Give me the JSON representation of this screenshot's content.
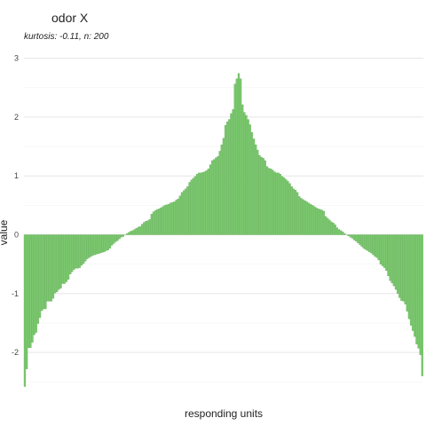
{
  "chart_data": {
    "type": "bar",
    "title": "odor X",
    "subtitle": "kurtosis: -0.11, n: 200",
    "xlabel": "responding units",
    "ylabel": "value",
    "n": 200,
    "ylim": [
      -2.55,
      3.05
    ],
    "yticks": [
      -2,
      -1,
      0,
      1,
      2,
      3
    ],
    "grid": true,
    "legend": "none",
    "bar_color": "#7bc96f",
    "values": [
      -2.58,
      -2.28,
      -1.92,
      -1.92,
      -1.83,
      -1.7,
      -1.66,
      -1.51,
      -1.41,
      -1.29,
      -1.26,
      -1.26,
      -1.13,
      -1.13,
      -1.13,
      -1.08,
      -0.99,
      -0.97,
      -0.93,
      -0.91,
      -0.83,
      -0.83,
      -0.8,
      -0.76,
      -0.67,
      -0.63,
      -0.59,
      -0.57,
      -0.57,
      -0.56,
      -0.52,
      -0.49,
      -0.45,
      -0.41,
      -0.39,
      -0.37,
      -0.35,
      -0.34,
      -0.33,
      -0.32,
      -0.31,
      -0.3,
      -0.29,
      -0.27,
      -0.26,
      -0.23,
      -0.18,
      -0.15,
      -0.12,
      -0.1,
      -0.07,
      -0.04,
      -0.03,
      0.0,
      0.02,
      0.04,
      0.06,
      0.07,
      0.09,
      0.11,
      0.13,
      0.14,
      0.18,
      0.21,
      0.23,
      0.24,
      0.26,
      0.35,
      0.39,
      0.41,
      0.43,
      0.44,
      0.46,
      0.48,
      0.5,
      0.51,
      0.52,
      0.54,
      0.55,
      0.56,
      0.59,
      0.61,
      0.66,
      0.72,
      0.75,
      0.78,
      0.82,
      0.89,
      0.93,
      0.96,
      0.99,
      1.03,
      1.05,
      1.05,
      1.06,
      1.07,
      1.09,
      1.12,
      1.19,
      1.26,
      1.28,
      1.31,
      1.33,
      1.42,
      1.53,
      1.64,
      1.86,
      1.92,
      1.96,
      2.06,
      2.13,
      2.56,
      2.65,
      2.74,
      2.65,
      2.21,
      2.08,
      2.03,
      1.96,
      1.87,
      1.74,
      1.63,
      1.53,
      1.44,
      1.35,
      1.32,
      1.3,
      1.26,
      1.16,
      1.13,
      1.12,
      1.1,
      1.07,
      1.05,
      1.05,
      1.03,
      0.99,
      0.97,
      0.94,
      0.91,
      0.87,
      0.82,
      0.78,
      0.76,
      0.72,
      0.65,
      0.62,
      0.6,
      0.58,
      0.56,
      0.54,
      0.52,
      0.5,
      0.48,
      0.46,
      0.44,
      0.43,
      0.42,
      0.4,
      0.31,
      0.28,
      0.25,
      0.22,
      0.2,
      0.17,
      0.12,
      0.09,
      0.07,
      0.05,
      0.02,
      0.0,
      -0.02,
      -0.04,
      -0.06,
      -0.09,
      -0.11,
      -0.14,
      -0.17,
      -0.2,
      -0.23,
      -0.25,
      -0.27,
      -0.29,
      -0.31,
      -0.34,
      -0.37,
      -0.39,
      -0.43,
      -0.5,
      -0.53,
      -0.56,
      -0.61,
      -0.7,
      -0.78,
      -0.82,
      -0.87,
      -0.93,
      -1.0,
      -1.07,
      -1.12,
      -1.13,
      -1.18,
      -1.3,
      -1.43,
      -1.54,
      -1.63,
      -1.73,
      -1.86,
      -1.93,
      -2.04,
      -2.4
    ]
  }
}
